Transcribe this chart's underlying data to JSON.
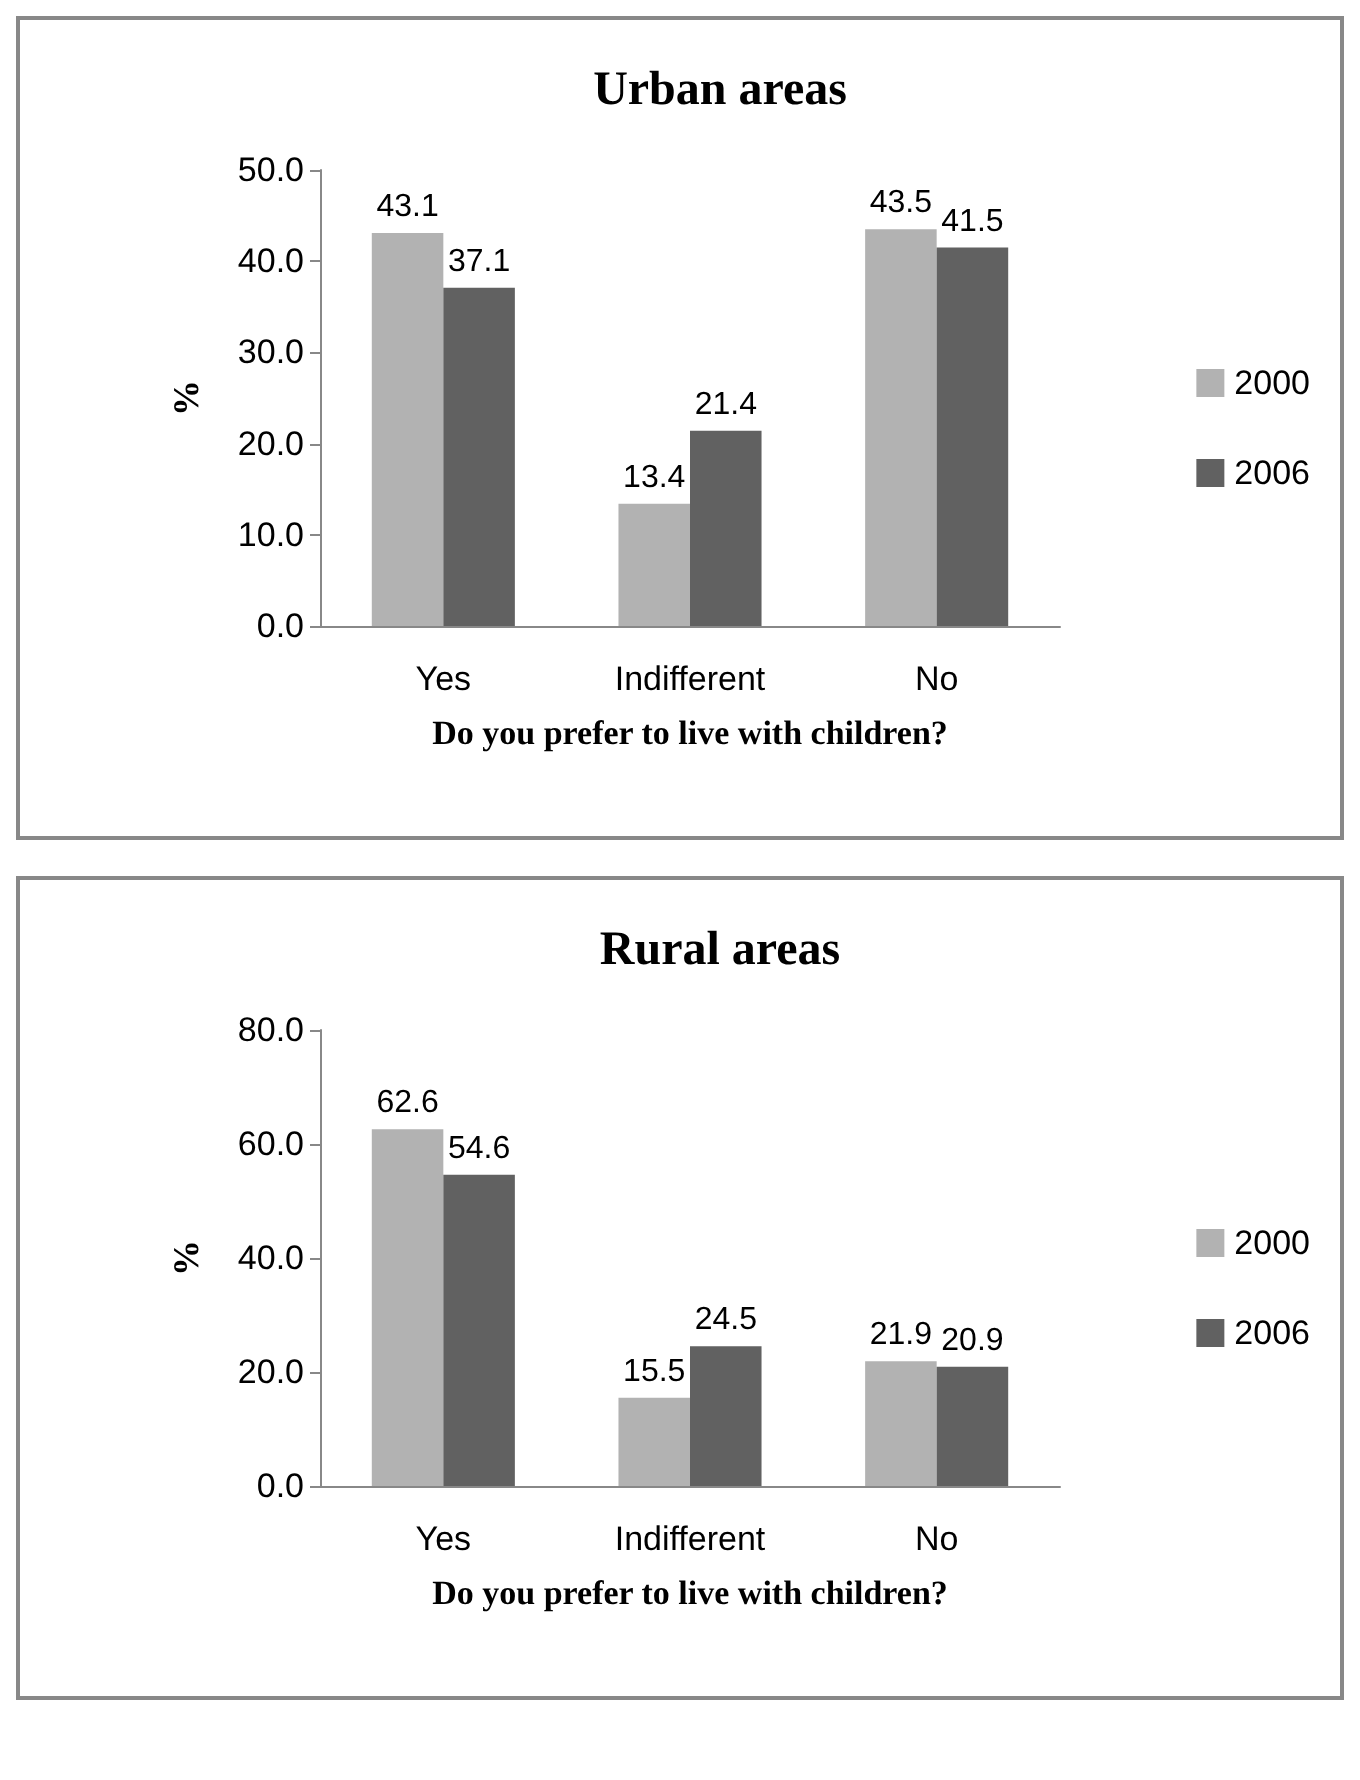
{
  "chart_data": [
    {
      "type": "bar",
      "title": "Urban areas",
      "xlabel": "Do you prefer to live with children?",
      "ylabel": "%",
      "categories": [
        "Yes",
        "Indifferent",
        "No"
      ],
      "series": [
        {
          "name": "2000",
          "color": "#b2b2b2",
          "values": [
            43.1,
            13.4,
            43.5
          ]
        },
        {
          "name": "2006",
          "color": "#616161",
          "values": [
            37.1,
            21.4,
            41.5
          ]
        }
      ],
      "ylim": [
        0,
        50
      ],
      "yticks": [
        {
          "value": 0,
          "label": "0.0"
        },
        {
          "value": 10,
          "label": "10.0"
        },
        {
          "value": 20,
          "label": "20.0"
        },
        {
          "value": 30,
          "label": "30.0"
        },
        {
          "value": 40,
          "label": "40.0"
        },
        {
          "value": 50,
          "label": "50.0"
        }
      ],
      "data_labels": true,
      "grid": false,
      "legend": "right"
    },
    {
      "type": "bar",
      "title": "Rural areas",
      "xlabel": "Do you prefer to live with children?",
      "ylabel": "%",
      "categories": [
        "Yes",
        "Indifferent",
        "No"
      ],
      "series": [
        {
          "name": "2000",
          "color": "#b2b2b2",
          "values": [
            62.6,
            15.5,
            21.9
          ]
        },
        {
          "name": "2006",
          "color": "#616161",
          "values": [
            54.6,
            24.5,
            20.9
          ]
        }
      ],
      "ylim": [
        0,
        80
      ],
      "yticks": [
        {
          "value": 0,
          "label": "0.0"
        },
        {
          "value": 20,
          "label": "20.0"
        },
        {
          "value": 40,
          "label": "40.0"
        },
        {
          "value": 60,
          "label": "60.0"
        },
        {
          "value": 80,
          "label": "80.0"
        }
      ],
      "data_labels": true,
      "grid": false,
      "legend": "right"
    }
  ]
}
